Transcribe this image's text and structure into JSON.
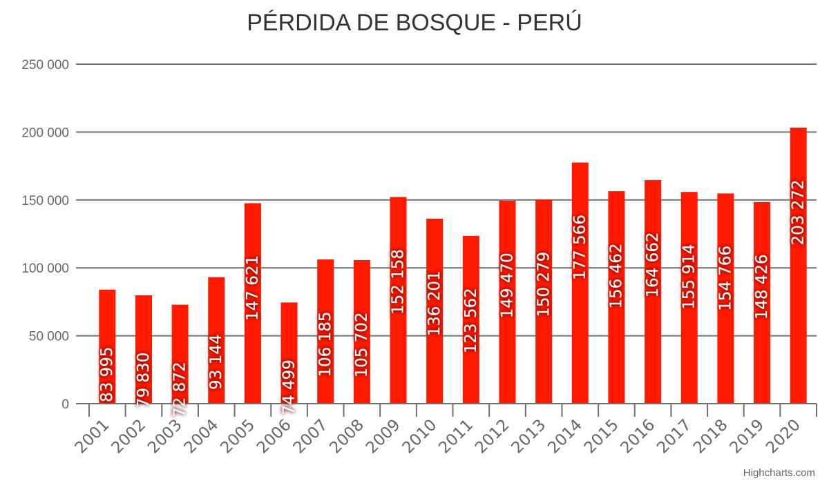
{
  "chart_data": {
    "type": "bar",
    "title": "PÉRDIDA DE BOSQUE - PERÚ",
    "xlabel": "",
    "ylabel": "",
    "categories": [
      "2001",
      "2002",
      "2003",
      "2004",
      "2005",
      "2006",
      "2007",
      "2008",
      "2009",
      "2010",
      "2011",
      "2012",
      "2013",
      "2014",
      "2015",
      "2016",
      "2017",
      "2018",
      "2019",
      "2020"
    ],
    "values": [
      83995,
      79830,
      72872,
      93144,
      147621,
      74499,
      106185,
      105702,
      152158,
      136201,
      123562,
      149470,
      150279,
      177566,
      156462,
      164662,
      155914,
      154766,
      148426,
      203272
    ],
    "value_labels": [
      "83 995",
      "79 830",
      "72 872",
      "93 144",
      "147 621",
      "74 499",
      "106 185",
      "105 702",
      "152 158",
      "136 201",
      "123 562",
      "149 470",
      "150 279",
      "177 566",
      "156 462",
      "164 662",
      "155 914",
      "154 766",
      "148 426",
      "203 272"
    ],
    "ylim": [
      0,
      250000
    ],
    "yticks": [
      0,
      50000,
      100000,
      150000,
      200000,
      250000
    ],
    "ytick_labels": [
      "0",
      "50 000",
      "100 000",
      "150 000",
      "200 000",
      "250 000"
    ],
    "grid": true,
    "legend": "none",
    "bar_color": "#ff1a00",
    "data_labels": "rotated -90°, inside bars, white text with dark shadow"
  },
  "title": "PÉRDIDA DE BOSQUE - PERÚ",
  "credits": "Highcharts.com"
}
